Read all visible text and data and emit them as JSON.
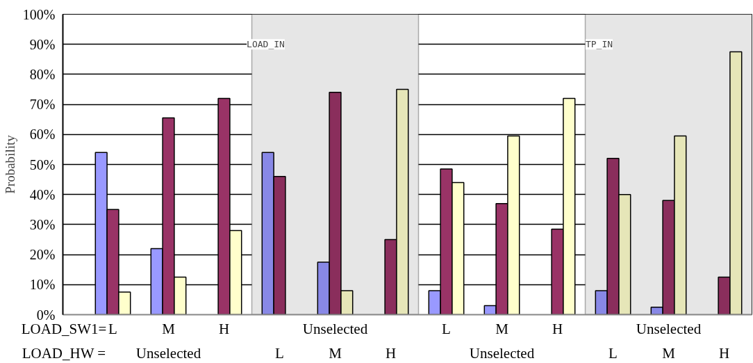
{
  "chart_data": {
    "type": "bar",
    "ylabel": "Probability",
    "categories": [
      "L\n",
      "M\nUnselected",
      "H\n",
      "\nL",
      "Unselected\nM",
      "\nH",
      "L\n",
      "M\nUnselected",
      "H\n",
      "\nL",
      "Unselected\nM",
      "\nH"
    ],
    "series": [
      {
        "colors": [
          "#9999ff",
          "#9999ff",
          "#9999ff",
          "#8888e6",
          "#8888e6",
          "#8888e6",
          "#9999ff",
          "#9999ff",
          "#9999ff",
          "#8888e6",
          "#8888e6",
          "#8888e6"
        ],
        "values": [
          54,
          22,
          null,
          54,
          17.5,
          null,
          8,
          3,
          null,
          8,
          2.5,
          null
        ]
      },
      {
        "colors": [
          "#993366",
          "#993366",
          "#993366",
          "#8a2e5c",
          "#8a2e5c",
          "#8a2e5c",
          "#993366",
          "#993366",
          "#993366",
          "#8a2e5c",
          "#8a2e5c",
          "#8a2e5c"
        ],
        "values": [
          35,
          65.5,
          72,
          46,
          74,
          25,
          48.5,
          37,
          28.5,
          52,
          38,
          12.5
        ]
      },
      {
        "colors": [
          "#ffffcc",
          "#ffffcc",
          "#ffffcc",
          "#e6e6b8",
          "#e6e6b8",
          "#e6e6b8",
          "#ffffcc",
          "#ffffcc",
          "#ffffcc",
          "#e6e6b8",
          "#e6e6b8",
          "#e6e6b8"
        ],
        "values": [
          7.5,
          12.5,
          28,
          null,
          8,
          75,
          44,
          59.5,
          72,
          40,
          59.5,
          87.5
        ]
      }
    ],
    "ylim": [
      0,
      100
    ],
    "yticks": [
      {
        "value": 0,
        "label": "0%"
      },
      {
        "value": 10,
        "label": "10%"
      },
      {
        "value": 20,
        "label": "20%"
      },
      {
        "value": 30,
        "label": "30%"
      },
      {
        "value": 40,
        "label": "40%"
      },
      {
        "value": 50,
        "label": "50%"
      },
      {
        "value": 60,
        "label": "60%"
      },
      {
        "value": 70,
        "label": "70%"
      },
      {
        "value": 80,
        "label": "80%"
      },
      {
        "value": 90,
        "label": "90%"
      },
      {
        "value": 100,
        "label": "100%"
      }
    ],
    "grid": "y",
    "annotations": [
      "LOAD_IN",
      "TP_IN",
      "LOAD_SW1=",
      "LOAD_HW ="
    ]
  }
}
